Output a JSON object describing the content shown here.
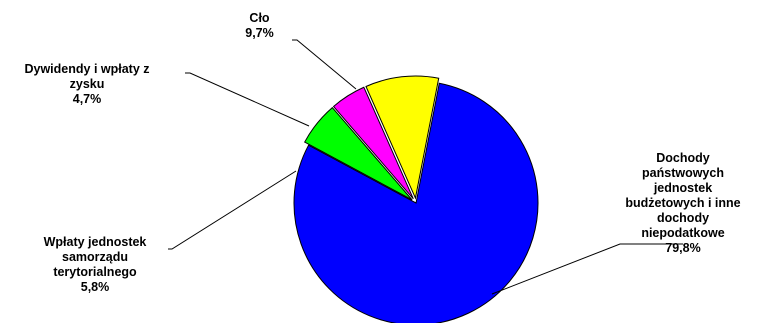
{
  "chart_data": {
    "type": "pie",
    "slices": [
      {
        "label_lines": [
          "Dochody",
          "państwowych",
          "jednostek",
          "budżetowych i inne",
          "dochody",
          "niepodatkowe"
        ],
        "value_text": "79,8%",
        "value": 79.8,
        "color": "#0000FF",
        "exploded": false
      },
      {
        "label_lines": [
          "Wpłaty jednostek",
          "samorządu",
          "terytorialnego"
        ],
        "value_text": "5,8%",
        "value": 5.8,
        "color": "#00FF00",
        "exploded": true
      },
      {
        "label_lines": [
          "Dywidendy i wpłaty z",
          "zysku"
        ],
        "value_text": "4,7%",
        "value": 4.7,
        "color": "#FF00FF",
        "exploded": true
      },
      {
        "label_lines": [
          "Cło"
        ],
        "value_text": "9,7%",
        "value": 9.7,
        "color": "#FFFF00",
        "exploded": true
      }
    ],
    "legend": "none",
    "start_angle_deg": 11,
    "direction": "clockwise"
  }
}
